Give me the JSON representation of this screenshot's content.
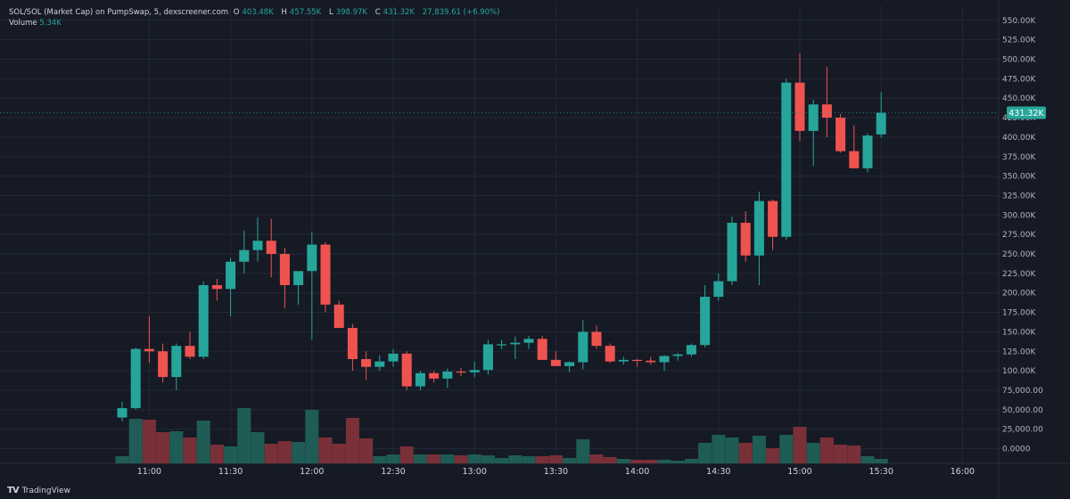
{
  "header": {
    "symbol": "SOL/SOL (Market Cap) on PumpSwap, 5, dexscreener.com",
    "open_label": "O",
    "open": "403.48K",
    "high_label": "H",
    "high": "457.55K",
    "low_label": "L",
    "low": "398.97K",
    "close_label": "C",
    "close": "431.32K",
    "change": "27,839.61 (+6.90%)"
  },
  "volume": {
    "label": "Volume",
    "value": "5.34K"
  },
  "price_badge": "431.32K",
  "branding": "TradingView",
  "colors": {
    "up": "#26a69a",
    "down": "#ef5350",
    "up_vol": "#1f5c55",
    "down_vol": "#7a3038",
    "background": "#161a25",
    "grid": "#232836",
    "badge": "#26a69a"
  },
  "chart_data": {
    "type": "candlestick",
    "y_range": [
      0,
      560000
    ],
    "y_ticks": [
      "0.0000",
      "25,000.00",
      "50,000.00",
      "75,000.00",
      "100.00K",
      "125.00K",
      "150.00K",
      "175.00K",
      "200.00K",
      "225.00K",
      "250.00K",
      "275.00K",
      "300.00K",
      "325.00K",
      "350.00K",
      "375.00K",
      "400.00K",
      "425.00K",
      "450.00K",
      "475.00K",
      "500.00K",
      "525.00K",
      "550.00K"
    ],
    "x_ticks": [
      "11:00",
      "11:30",
      "12:00",
      "12:30",
      "13:00",
      "13:30",
      "14:00",
      "14:30",
      "15:00",
      "15:30",
      "16:00"
    ],
    "candles": [
      {
        "t": "10:50",
        "o": 40000,
        "h": 60000,
        "l": 35000,
        "c": 52000,
        "v": 8
      },
      {
        "t": "10:55",
        "o": 52000,
        "h": 130000,
        "l": 50000,
        "c": 128000,
        "v": 50
      },
      {
        "t": "11:00",
        "o": 128000,
        "h": 170000,
        "l": 110000,
        "c": 125000,
        "v": 49
      },
      {
        "t": "11:05",
        "o": 125000,
        "h": 135000,
        "l": 85000,
        "c": 92000,
        "v": 35
      },
      {
        "t": "11:10",
        "o": 92000,
        "h": 135000,
        "l": 75000,
        "c": 132000,
        "v": 36
      },
      {
        "t": "11:15",
        "o": 132000,
        "h": 150000,
        "l": 115000,
        "c": 118000,
        "v": 29
      },
      {
        "t": "11:20",
        "o": 118000,
        "h": 215000,
        "l": 115000,
        "c": 210000,
        "v": 48
      },
      {
        "t": "11:25",
        "o": 210000,
        "h": 218000,
        "l": 190000,
        "c": 205000,
        "v": 21
      },
      {
        "t": "11:30",
        "o": 205000,
        "h": 245000,
        "l": 170000,
        "c": 240000,
        "v": 19
      },
      {
        "t": "11:35",
        "o": 240000,
        "h": 280000,
        "l": 225000,
        "c": 255000,
        "v": 62
      },
      {
        "t": "11:40",
        "o": 255000,
        "h": 297000,
        "l": 240000,
        "c": 267000,
        "v": 35
      },
      {
        "t": "11:45",
        "o": 267000,
        "h": 295000,
        "l": 220000,
        "c": 250000,
        "v": 22
      },
      {
        "t": "11:50",
        "o": 250000,
        "h": 258000,
        "l": 180000,
        "c": 210000,
        "v": 25
      },
      {
        "t": "11:55",
        "o": 210000,
        "h": 225000,
        "l": 185000,
        "c": 228000,
        "v": 24
      },
      {
        "t": "12:00",
        "o": 228000,
        "h": 278000,
        "l": 140000,
        "c": 262000,
        "v": 60
      },
      {
        "t": "12:05",
        "o": 262000,
        "h": 265000,
        "l": 175000,
        "c": 185000,
        "v": 29
      },
      {
        "t": "12:10",
        "o": 185000,
        "h": 190000,
        "l": 155000,
        "c": 155000,
        "v": 22
      },
      {
        "t": "12:15",
        "o": 155000,
        "h": 160000,
        "l": 100000,
        "c": 115000,
        "v": 51
      },
      {
        "t": "12:20",
        "o": 115000,
        "h": 125000,
        "l": 88000,
        "c": 105000,
        "v": 28
      },
      {
        "t": "12:25",
        "o": 105000,
        "h": 120000,
        "l": 100000,
        "c": 112000,
        "v": 8
      },
      {
        "t": "12:30",
        "o": 112000,
        "h": 128000,
        "l": 105000,
        "c": 122000,
        "v": 10
      },
      {
        "t": "12:35",
        "o": 122000,
        "h": 125000,
        "l": 75000,
        "c": 80000,
        "v": 19
      },
      {
        "t": "12:40",
        "o": 80000,
        "h": 100000,
        "l": 75000,
        "c": 97000,
        "v": 10
      },
      {
        "t": "12:45",
        "o": 97000,
        "h": 100000,
        "l": 85000,
        "c": 90000,
        "v": 10
      },
      {
        "t": "12:50",
        "o": 90000,
        "h": 103000,
        "l": 78000,
        "c": 99000,
        "v": 10
      },
      {
        "t": "12:55",
        "o": 99000,
        "h": 104000,
        "l": 93000,
        "c": 98000,
        "v": 9
      },
      {
        "t": "13:00",
        "o": 98000,
        "h": 112000,
        "l": 92000,
        "c": 101000,
        "v": 10
      },
      {
        "t": "13:05",
        "o": 101000,
        "h": 140000,
        "l": 95000,
        "c": 134000,
        "v": 9
      },
      {
        "t": "13:10",
        "o": 134000,
        "h": 140000,
        "l": 128000,
        "c": 134000,
        "v": 6
      },
      {
        "t": "13:15",
        "o": 134000,
        "h": 144000,
        "l": 115000,
        "c": 136000,
        "v": 9
      },
      {
        "t": "13:20",
        "o": 136000,
        "h": 145000,
        "l": 128000,
        "c": 141000,
        "v": 8
      },
      {
        "t": "13:25",
        "o": 141000,
        "h": 145000,
        "l": 118000,
        "c": 114000,
        "v": 8
      },
      {
        "t": "13:30",
        "o": 114000,
        "h": 125000,
        "l": 110000,
        "c": 106000,
        "v": 9
      },
      {
        "t": "13:35",
        "o": 106000,
        "h": 112000,
        "l": 98000,
        "c": 111000,
        "v": 6
      },
      {
        "t": "13:40",
        "o": 111000,
        "h": 165000,
        "l": 102000,
        "c": 150000,
        "v": 27
      },
      {
        "t": "13:45",
        "o": 150000,
        "h": 158000,
        "l": 128000,
        "c": 132000,
        "v": 10
      },
      {
        "t": "13:50",
        "o": 132000,
        "h": 135000,
        "l": 110000,
        "c": 112000,
        "v": 7
      },
      {
        "t": "13:55",
        "o": 112000,
        "h": 118000,
        "l": 108000,
        "c": 114000,
        "v": 5
      },
      {
        "t": "14:00",
        "o": 114000,
        "h": 115000,
        "l": 105000,
        "c": 113000,
        "v": 4
      },
      {
        "t": "14:05",
        "o": 113000,
        "h": 118000,
        "l": 108000,
        "c": 111000,
        "v": 4
      },
      {
        "t": "14:10",
        "o": 111000,
        "h": 120000,
        "l": 100000,
        "c": 119000,
        "v": 4
      },
      {
        "t": "14:15",
        "o": 119000,
        "h": 123000,
        "l": 113000,
        "c": 121000,
        "v": 3
      },
      {
        "t": "14:20",
        "o": 121000,
        "h": 135000,
        "l": 118000,
        "c": 133000,
        "v": 5
      },
      {
        "t": "14:25",
        "o": 133000,
        "h": 210000,
        "l": 130000,
        "c": 195000,
        "v": 23
      },
      {
        "t": "14:30",
        "o": 195000,
        "h": 225000,
        "l": 190000,
        "c": 215000,
        "v": 32
      },
      {
        "t": "14:35",
        "o": 215000,
        "h": 298000,
        "l": 210000,
        "c": 290000,
        "v": 29
      },
      {
        "t": "14:40",
        "o": 290000,
        "h": 305000,
        "l": 240000,
        "c": 248000,
        "v": 23
      },
      {
        "t": "14:45",
        "o": 248000,
        "h": 330000,
        "l": 210000,
        "c": 318000,
        "v": 31
      },
      {
        "t": "14:50",
        "o": 318000,
        "h": 320000,
        "l": 255000,
        "c": 272000,
        "v": 17
      },
      {
        "t": "14:55",
        "o": 272000,
        "h": 475000,
        "l": 268000,
        "c": 470000,
        "v": 32
      },
      {
        "t": "15:00",
        "o": 470000,
        "h": 508000,
        "l": 395000,
        "c": 408000,
        "v": 41
      },
      {
        "t": "15:05",
        "o": 408000,
        "h": 448000,
        "l": 363000,
        "c": 442000,
        "v": 23
      },
      {
        "t": "15:10",
        "o": 442000,
        "h": 490000,
        "l": 400000,
        "c": 425000,
        "v": 29
      },
      {
        "t": "15:15",
        "o": 425000,
        "h": 430000,
        "l": 380000,
        "c": 382000,
        "v": 21
      },
      {
        "t": "15:20",
        "o": 382000,
        "h": 415000,
        "l": 360000,
        "c": 360000,
        "v": 20
      },
      {
        "t": "15:25",
        "o": 360000,
        "h": 405000,
        "l": 355000,
        "c": 402000,
        "v": 8
      },
      {
        "t": "15:30",
        "o": 403480,
        "h": 457550,
        "l": 398970,
        "c": 431320,
        "v": 5
      }
    ]
  }
}
